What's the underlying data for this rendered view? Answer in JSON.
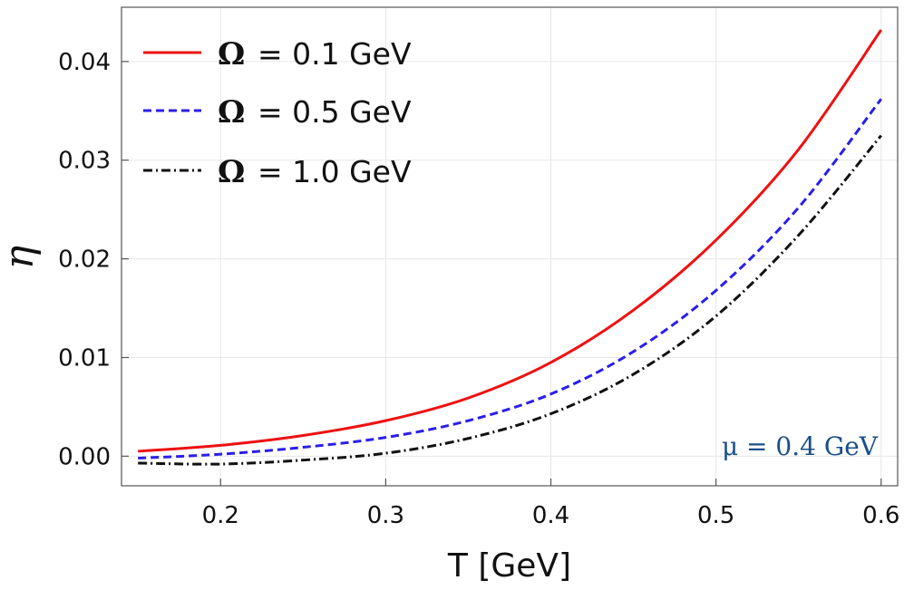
{
  "chart_data": {
    "type": "line",
    "title": "",
    "xlabel": "T [GeV]",
    "ylabel": "η",
    "xlim": [
      0.14,
      0.61
    ],
    "ylim": [
      -0.003,
      0.0455
    ],
    "xticks": [
      0.2,
      0.3,
      0.4,
      0.5,
      0.6
    ],
    "xtick_labels": [
      "0.2",
      "0.3",
      "0.4",
      "0.5",
      "0.6"
    ],
    "yticks": [
      0.0,
      0.01,
      0.02,
      0.03,
      0.04
    ],
    "ytick_labels": [
      "0.00",
      "0.01",
      "0.02",
      "0.03",
      "0.04"
    ],
    "grid": true,
    "legend_position": "top-left",
    "x": [
      0.15,
      0.2,
      0.25,
      0.3,
      0.35,
      0.4,
      0.45,
      0.5,
      0.55,
      0.6
    ],
    "series": [
      {
        "name": "Ω = 0.1 GeV",
        "symbol": "Ω",
        "label_rest": "= 0.1 GeV",
        "color": "#ee1111",
        "dash": "solid",
        "values": [
          0.0005,
          0.0011,
          0.0021,
          0.0036,
          0.0059,
          0.0095,
          0.0148,
          0.0219,
          0.0311,
          0.0432
        ]
      },
      {
        "name": "Ω = 0.5 GeV",
        "symbol": "Ω",
        "label_rest": "= 0.5 GeV",
        "color": "#2b1ee8",
        "dash": "dashed",
        "values": [
          -0.0002,
          0.0002,
          0.0009,
          0.0019,
          0.0036,
          0.0063,
          0.0106,
          0.0168,
          0.0252,
          0.0362
        ]
      },
      {
        "name": "Ω = 1.0 GeV",
        "symbol": "Ω",
        "label_rest": "= 1.0 GeV",
        "color": "#111111",
        "dash": "dashdot",
        "values": [
          -0.0007,
          -0.0008,
          -0.0004,
          0.0003,
          0.0018,
          0.0043,
          0.0083,
          0.0142,
          0.0224,
          0.0325
        ]
      }
    ],
    "annotations": [
      {
        "text": "μ = 0.4 GeV",
        "color": "#1a4f8a",
        "position": "bottom-right"
      }
    ]
  }
}
